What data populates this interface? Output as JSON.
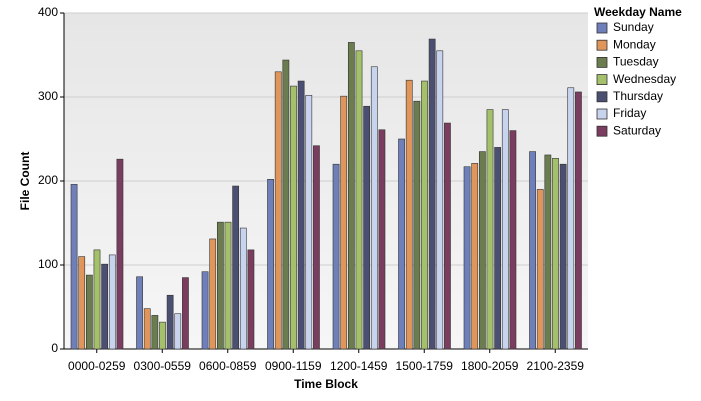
{
  "chart_data": {
    "type": "bar",
    "x_label": "Time Block",
    "y_label": "File Count",
    "legend_title": "Weekday Name",
    "categories": [
      "0000-0259",
      "0300-0559",
      "0600-0859",
      "0900-1159",
      "1200-1459",
      "1500-1759",
      "1800-2059",
      "2100-2359"
    ],
    "series": [
      {
        "name": "Sunday",
        "color": "#6f7fba",
        "values": [
          196,
          86,
          92,
          202,
          220,
          250,
          217,
          235
        ]
      },
      {
        "name": "Monday",
        "color": "#e0955a",
        "values": [
          110,
          48,
          131,
          330,
          301,
          320,
          221,
          190
        ]
      },
      {
        "name": "Tuesday",
        "color": "#6b7d4f",
        "values": [
          88,
          40,
          151,
          344,
          365,
          295,
          235,
          231
        ]
      },
      {
        "name": "Wednesday",
        "color": "#a5c06a",
        "values": [
          118,
          32,
          151,
          313,
          355,
          319,
          285,
          227
        ]
      },
      {
        "name": "Thursday",
        "color": "#4b4f72",
        "values": [
          101,
          64,
          194,
          319,
          289,
          369,
          240,
          220
        ]
      },
      {
        "name": "Friday",
        "color": "#c8d3ee",
        "values": [
          112,
          42,
          144,
          302,
          336,
          355,
          285,
          311
        ]
      },
      {
        "name": "Saturday",
        "color": "#7a3d5f",
        "values": [
          226,
          85,
          118,
          242,
          261,
          269,
          260,
          306
        ]
      }
    ],
    "ylim": [
      0,
      400
    ],
    "yticks": [
      0,
      100,
      200,
      300,
      400
    ],
    "grid": true,
    "legend": "right"
  }
}
